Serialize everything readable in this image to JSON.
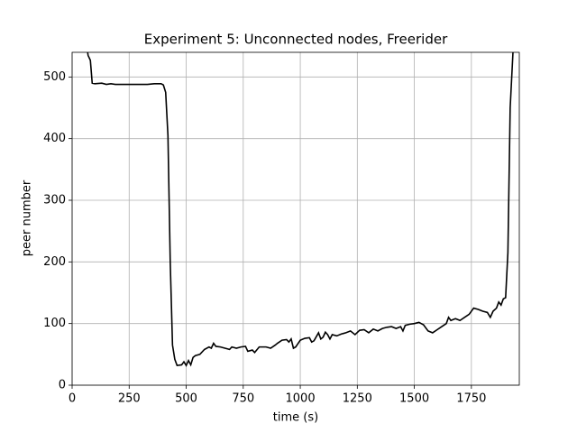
{
  "chart_data": {
    "type": "line",
    "title": "Experiment 5: Unconnected nodes, Freerider",
    "x_label": "time (s)",
    "y_label": "peer number",
    "x": [
      60,
      70,
      80,
      88,
      100,
      130,
      150,
      170,
      190,
      220,
      260,
      300,
      330,
      360,
      390,
      400,
      410,
      420,
      430,
      440,
      450,
      460,
      480,
      490,
      500,
      510,
      520,
      530,
      540,
      560,
      580,
      600,
      610,
      620,
      630,
      650,
      670,
      690,
      700,
      720,
      740,
      760,
      770,
      790,
      800,
      820,
      850,
      870,
      890,
      900,
      920,
      940,
      950,
      960,
      970,
      980,
      1000,
      1020,
      1040,
      1050,
      1060,
      1080,
      1090,
      1100,
      1110,
      1120,
      1130,
      1140,
      1160,
      1180,
      1200,
      1220,
      1240,
      1260,
      1280,
      1300,
      1320,
      1340,
      1360,
      1380,
      1400,
      1420,
      1440,
      1450,
      1460,
      1480,
      1500,
      1520,
      1540,
      1560,
      1580,
      1600,
      1620,
      1640,
      1650,
      1660,
      1680,
      1700,
      1720,
      1740,
      1760,
      1780,
      1800,
      1820,
      1833,
      1845,
      1860,
      1870,
      1880,
      1890,
      1900,
      1910,
      1920,
      1935
    ],
    "values": [
      560,
      535,
      527,
      490,
      489,
      490,
      488,
      489,
      488,
      488,
      488,
      488,
      488,
      489,
      489,
      487,
      475,
      405,
      200,
      65,
      42,
      32,
      33,
      38,
      32,
      40,
      33,
      45,
      48,
      50,
      58,
      62,
      60,
      68,
      63,
      62,
      60,
      58,
      62,
      60,
      62,
      63,
      55,
      57,
      53,
      62,
      62,
      60,
      65,
      68,
      73,
      74,
      70,
      75,
      60,
      62,
      73,
      76,
      77,
      70,
      72,
      85,
      75,
      78,
      86,
      82,
      75,
      82,
      80,
      83,
      85,
      88,
      82,
      89,
      90,
      85,
      91,
      88,
      92,
      94,
      95,
      92,
      95,
      88,
      97,
      99,
      100,
      102,
      98,
      88,
      85,
      90,
      95,
      100,
      110,
      105,
      108,
      105,
      110,
      115,
      125,
      123,
      120,
      118,
      110,
      120,
      125,
      135,
      130,
      140,
      142,
      215,
      450,
      560
    ],
    "color": "#000000",
    "xlim": [
      0,
      1960
    ],
    "ylim": [
      0,
      540
    ],
    "xticks": [
      0,
      250,
      500,
      750,
      1000,
      1250,
      1500,
      1750
    ],
    "yticks": [
      0,
      100,
      200,
      300,
      400,
      500
    ],
    "grid": true
  }
}
